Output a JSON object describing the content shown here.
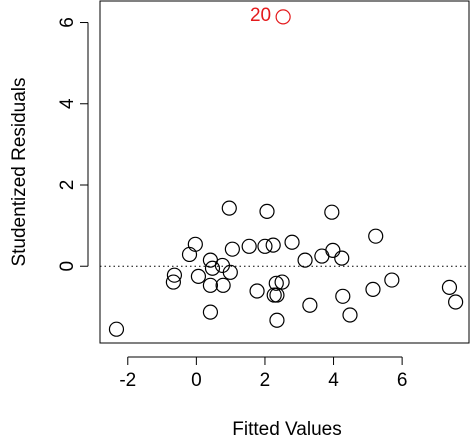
{
  "chart_data": {
    "type": "scatter",
    "x_label": "Fitted Values",
    "y_label": "Studentized Residuals",
    "x": [
      -2.33,
      -0.64,
      -0.67,
      -0.2,
      -0.03,
      0.06,
      0.41,
      0.47,
      0.41,
      0.41,
      0.76,
      0.78,
      0.99,
      0.96,
      1.05,
      1.54,
      1.77,
      2.0,
      2.24,
      2.06,
      2.33,
      2.27,
      2.35,
      2.5,
      2.35,
      2.79,
      3.17,
      3.31,
      3.66,
      3.95,
      3.98,
      4.24,
      4.27,
      4.48,
      5.15,
      5.23,
      5.7,
      7.38,
      7.56
    ],
    "y": [
      -1.55,
      -0.22,
      -0.39,
      0.29,
      0.54,
      -0.25,
      0.15,
      -0.05,
      -0.47,
      -1.13,
      0.02,
      -0.47,
      -0.15,
      1.43,
      0.42,
      0.49,
      -0.61,
      0.49,
      0.52,
      1.35,
      -0.42,
      -0.71,
      -0.71,
      -0.39,
      -1.33,
      0.59,
      0.15,
      -0.96,
      0.25,
      1.33,
      0.39,
      0.2,
      -0.74,
      -1.2,
      -0.57,
      0.74,
      -0.34,
      -0.52,
      -0.88
    ],
    "color": "#000000",
    "outlier": {
      "label": "20",
      "x": 2.53,
      "y": 6.14,
      "color": "#e41a1c"
    },
    "hline": 0,
    "xlim": [
      -2.81,
      7.95
    ],
    "ylim": [
      -1.89,
      6.53
    ],
    "xticks": [
      -2,
      0,
      2,
      4,
      6
    ],
    "yticks": [
      0,
      2,
      4,
      6
    ]
  }
}
